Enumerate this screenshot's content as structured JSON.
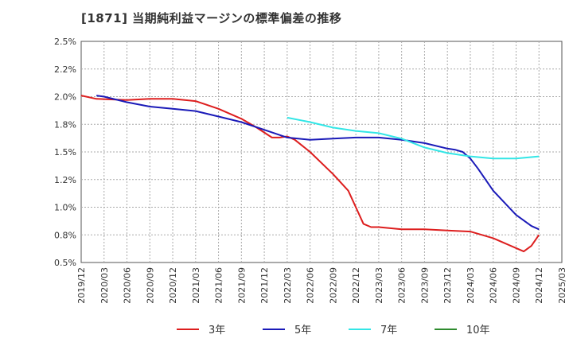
{
  "chart_data": {
    "type": "line",
    "title": "[1871]  当期純利益マージンの標準偏差の推移",
    "xlabel": "",
    "ylabel": "",
    "ylim": [
      0.005,
      0.025
    ],
    "yticks": [
      "0.5%",
      "0.8%",
      "1.0%",
      "1.2%",
      "1.5%",
      "1.8%",
      "2.0%",
      "2.2%",
      "2.5%"
    ],
    "xticks": [
      "2019/12",
      "2020/03",
      "2020/06",
      "2020/09",
      "2020/12",
      "2021/03",
      "2021/06",
      "2021/09",
      "2021/12",
      "2022/03",
      "2022/06",
      "2022/09",
      "2022/12",
      "2023/03",
      "2023/06",
      "2023/09",
      "2023/12",
      "2024/03",
      "2024/06",
      "2024/09",
      "2024/12",
      "2025/03"
    ],
    "grid": true,
    "legend_position": "bottom",
    "series": [
      {
        "name": "3年",
        "color": "#dd1e1e",
        "points": [
          [
            "2019/12",
            0.0201
          ],
          [
            "2020/02",
            0.0198
          ],
          [
            "2020/06",
            0.0197
          ],
          [
            "2020/09",
            0.0198
          ],
          [
            "2020/12",
            0.0198
          ],
          [
            "2021/03",
            0.0196
          ],
          [
            "2021/06",
            0.0189
          ],
          [
            "2021/09",
            0.018
          ],
          [
            "2021/11",
            0.0172
          ],
          [
            "2022/01",
            0.0163
          ],
          [
            "2022/02",
            0.0163
          ],
          [
            "2022/03",
            0.0164
          ],
          [
            "2022/04",
            0.0161
          ],
          [
            "2022/06",
            0.015
          ],
          [
            "2022/09",
            0.013
          ],
          [
            "2022/11",
            0.0115
          ],
          [
            "2023/01",
            0.0085
          ],
          [
            "2023/02",
            0.0082
          ],
          [
            "2023/03",
            0.0082
          ],
          [
            "2023/06",
            0.008
          ],
          [
            "2023/09",
            0.008
          ],
          [
            "2023/12",
            0.0079
          ],
          [
            "2024/03",
            0.0078
          ],
          [
            "2024/06",
            0.0072
          ],
          [
            "2024/09",
            0.0063
          ],
          [
            "2024/10",
            0.006
          ],
          [
            "2024/11",
            0.0065
          ],
          [
            "2024/12",
            0.0075
          ]
        ]
      },
      {
        "name": "5年",
        "color": "#1a1ab8",
        "points": [
          [
            "2020/02",
            0.0201
          ],
          [
            "2020/03",
            0.02
          ],
          [
            "2020/06",
            0.0195
          ],
          [
            "2020/09",
            0.0191
          ],
          [
            "2020/12",
            0.0189
          ],
          [
            "2021/03",
            0.0187
          ],
          [
            "2021/06",
            0.0182
          ],
          [
            "2021/09",
            0.0177
          ],
          [
            "2021/12",
            0.017
          ],
          [
            "2022/03",
            0.0163
          ],
          [
            "2022/06",
            0.0161
          ],
          [
            "2022/09",
            0.0162
          ],
          [
            "2022/12",
            0.0163
          ],
          [
            "2023/03",
            0.0163
          ],
          [
            "2023/06",
            0.0161
          ],
          [
            "2023/09",
            0.0158
          ],
          [
            "2023/12",
            0.0153
          ],
          [
            "2024/01",
            0.0152
          ],
          [
            "2024/02",
            0.015
          ],
          [
            "2024/03",
            0.0144
          ],
          [
            "2024/04",
            0.0135
          ],
          [
            "2024/06",
            0.0115
          ],
          [
            "2024/09",
            0.0093
          ],
          [
            "2024/11",
            0.0083
          ],
          [
            "2024/12",
            0.008
          ]
        ]
      },
      {
        "name": "7年",
        "color": "#33e6e6",
        "points": [
          [
            "2022/03",
            0.0181
          ],
          [
            "2022/06",
            0.0177
          ],
          [
            "2022/09",
            0.0172
          ],
          [
            "2022/12",
            0.0169
          ],
          [
            "2023/03",
            0.0167
          ],
          [
            "2023/06",
            0.0162
          ],
          [
            "2023/09",
            0.0154
          ],
          [
            "2023/12",
            0.0149
          ],
          [
            "2024/03",
            0.0146
          ],
          [
            "2024/06",
            0.0144
          ],
          [
            "2024/09",
            0.0144
          ],
          [
            "2024/12",
            0.0146
          ]
        ]
      },
      {
        "name": "10年",
        "color": "#2e8b2e",
        "points": []
      }
    ]
  }
}
